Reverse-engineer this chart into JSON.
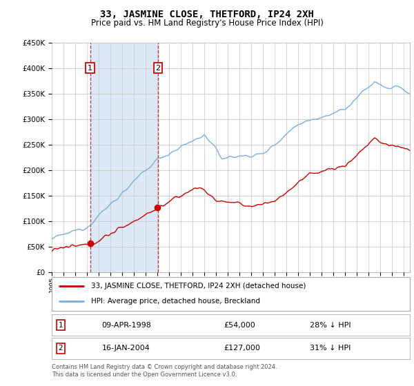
{
  "title": "33, JASMINE CLOSE, THETFORD, IP24 2XH",
  "subtitle": "Price paid vs. HM Land Registry's House Price Index (HPI)",
  "legend_line1": "33, JASMINE CLOSE, THETFORD, IP24 2XH (detached house)",
  "legend_line2": "HPI: Average price, detached house, Breckland",
  "sale1_label": "1",
  "sale1_date": "09-APR-1998",
  "sale1_price": "£54,000",
  "sale1_hpi": "28% ↓ HPI",
  "sale1_year": 1998.27,
  "sale1_value": 54000,
  "sale2_label": "2",
  "sale2_date": "16-JAN-2004",
  "sale2_price": "£127,000",
  "sale2_hpi": "31% ↓ HPI",
  "sale2_year": 2004.05,
  "sale2_value": 127000,
  "footer": "Contains HM Land Registry data © Crown copyright and database right 2024.\nThis data is licensed under the Open Government Licence v3.0.",
  "red_color": "#cc0000",
  "blue_color": "#7aaddc",
  "shade_color": "#dce8f5",
  "ylim": [
    0,
    450000
  ],
  "xlim_start": 1995.0,
  "xlim_end": 2025.5,
  "background_color": "#ffffff",
  "grid_color": "#cccccc",
  "plot_bg_color": "#ffffff"
}
